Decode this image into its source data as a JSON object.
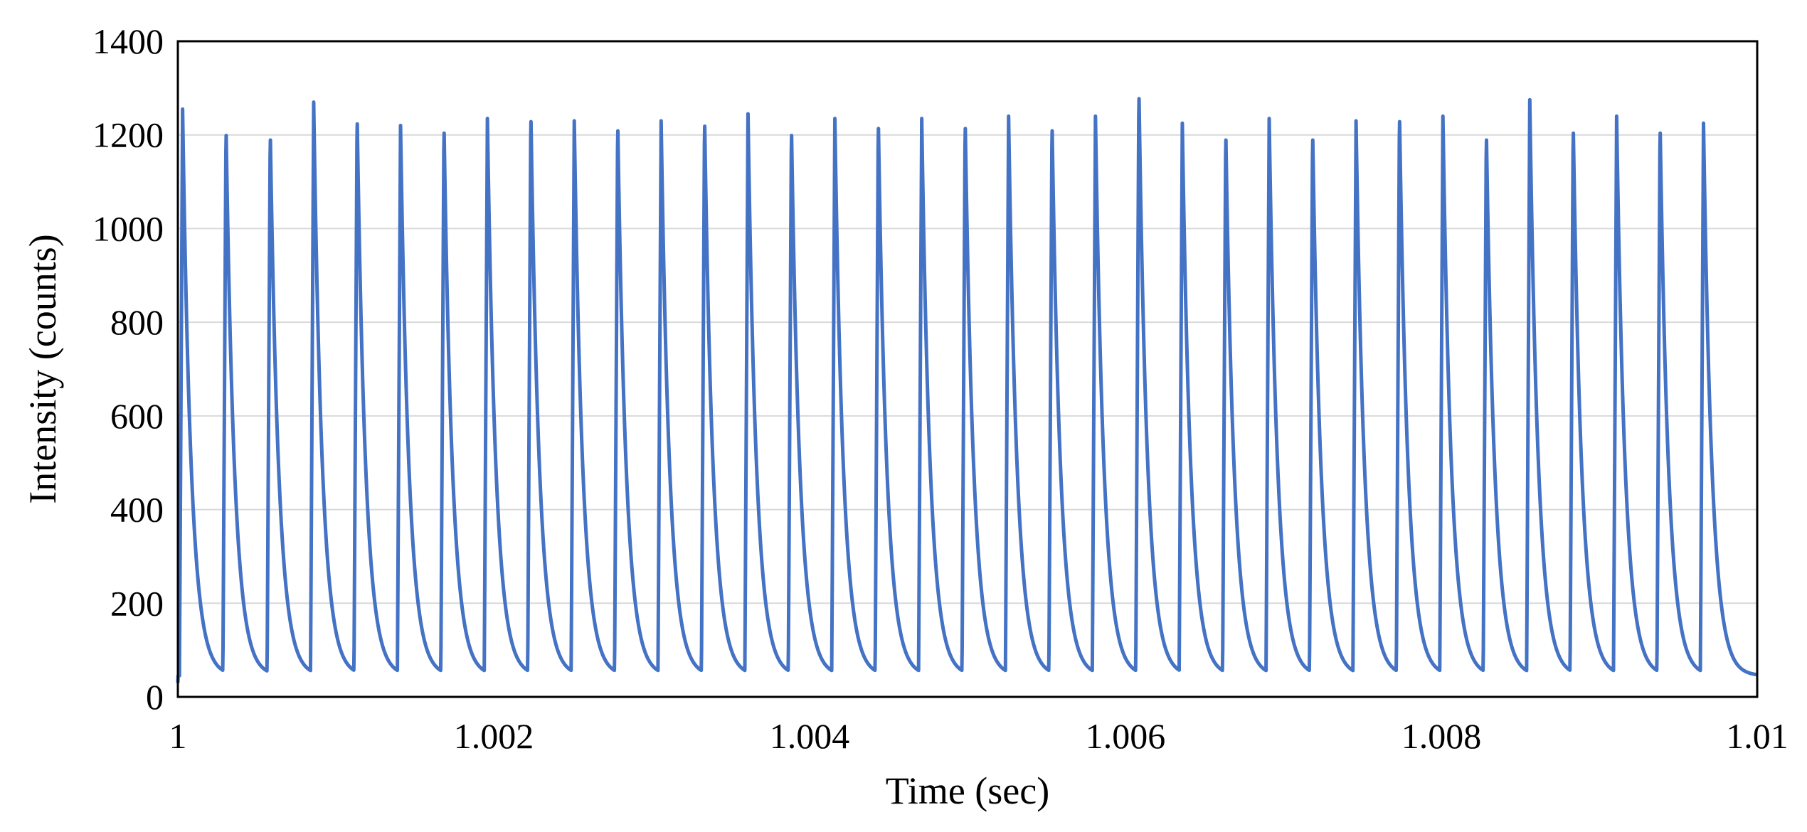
{
  "chart_data": {
    "type": "line",
    "title": "",
    "xlabel": "Time (sec)",
    "ylabel": "Intensity (counts)",
    "xlim": [
      1,
      1.01
    ],
    "ylim": [
      0,
      1400
    ],
    "x_ticks": [
      1,
      1.002,
      1.004,
      1.006,
      1.008,
      1.01
    ],
    "x_tick_labels": [
      "1",
      "1.002",
      "1.004",
      "1.006",
      "1.008",
      "1.01"
    ],
    "y_ticks": [
      0,
      200,
      400,
      600,
      800,
      1000,
      1200,
      1400
    ],
    "y_tick_labels": [
      "0",
      "200",
      "400",
      "600",
      "800",
      "1000",
      "1200",
      "1400"
    ],
    "grid": "horizontal",
    "legend": "none",
    "series_color": "#4472C4",
    "pulse_period_sec": 0.000275,
    "pulse_rise_sec": 2e-05,
    "pulse_decay_tau_sec": 5.5e-05,
    "baseline_counts": 45,
    "pulses": [
      {
        "t": 1.00003,
        "peak": 1255
      },
      {
        "t": 1.000305,
        "peak": 1220
      },
      {
        "t": 1.000585,
        "peak": 1210
      },
      {
        "t": 1.00086,
        "peak": 1270
      },
      {
        "t": 1.001135,
        "peak": 1245
      },
      {
        "t": 1.00141,
        "peak": 1220
      },
      {
        "t": 1.001685,
        "peak": 1225
      },
      {
        "t": 1.00196,
        "peak": 1235
      },
      {
        "t": 1.002235,
        "peak": 1250
      },
      {
        "t": 1.00251,
        "peak": 1230
      },
      {
        "t": 1.002785,
        "peak": 1230
      },
      {
        "t": 1.00306,
        "peak": 1230
      },
      {
        "t": 1.003335,
        "peak": 1240
      },
      {
        "t": 1.00361,
        "peak": 1245
      },
      {
        "t": 1.003885,
        "peak": 1220
      },
      {
        "t": 1.00416,
        "peak": 1235
      },
      {
        "t": 1.004435,
        "peak": 1235
      },
      {
        "t": 1.00471,
        "peak": 1235
      },
      {
        "t": 1.004985,
        "peak": 1235
      },
      {
        "t": 1.00526,
        "peak": 1240
      },
      {
        "t": 1.005535,
        "peak": 1230
      },
      {
        "t": 1.00581,
        "peak": 1240
      },
      {
        "t": 1.006085,
        "peak": 1300
      },
      {
        "t": 1.00636,
        "peak": 1225
      },
      {
        "t": 1.006635,
        "peak": 1210
      },
      {
        "t": 1.00691,
        "peak": 1235
      },
      {
        "t": 1.007185,
        "peak": 1210
      },
      {
        "t": 1.00746,
        "peak": 1230
      },
      {
        "t": 1.007735,
        "peak": 1250
      },
      {
        "t": 1.00801,
        "peak": 1240
      },
      {
        "t": 1.008285,
        "peak": 1210
      },
      {
        "t": 1.00856,
        "peak": 1275
      },
      {
        "t": 1.008835,
        "peak": 1225
      },
      {
        "t": 1.00911,
        "peak": 1240
      },
      {
        "t": 1.009385,
        "peak": 1225
      },
      {
        "t": 1.00966,
        "peak": 1225
      }
    ]
  }
}
